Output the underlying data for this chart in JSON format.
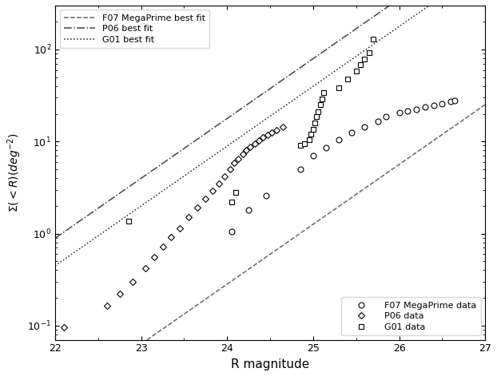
{
  "title": "",
  "xlabel": "R magnitude",
  "ylabel": "$\\Sigma(<R)(deg^{-2})$",
  "xlim": [
    22,
    27
  ],
  "ylim": [
    0.07,
    300
  ],
  "f07_circles": [
    [
      24.05,
      1.05
    ],
    [
      24.25,
      1.8
    ],
    [
      24.45,
      2.6
    ],
    [
      24.85,
      5.0
    ],
    [
      25.0,
      7.0
    ],
    [
      25.15,
      8.5
    ],
    [
      25.3,
      10.5
    ],
    [
      25.45,
      12.5
    ],
    [
      25.6,
      14.5
    ],
    [
      25.75,
      16.5
    ],
    [
      25.85,
      18.5
    ],
    [
      26.0,
      20.5
    ],
    [
      26.1,
      21.5
    ],
    [
      26.2,
      22.5
    ],
    [
      26.3,
      23.5
    ],
    [
      26.4,
      24.5
    ],
    [
      26.5,
      25.5
    ],
    [
      26.6,
      27.0
    ],
    [
      26.65,
      28.0
    ]
  ],
  "p06_diamonds": [
    [
      22.1,
      0.095
    ],
    [
      22.6,
      0.165
    ],
    [
      22.75,
      0.22
    ],
    [
      22.9,
      0.3
    ],
    [
      23.05,
      0.42
    ],
    [
      23.15,
      0.55
    ],
    [
      23.25,
      0.72
    ],
    [
      23.35,
      0.92
    ],
    [
      23.45,
      1.15
    ],
    [
      23.55,
      1.5
    ],
    [
      23.65,
      1.9
    ],
    [
      23.75,
      2.4
    ],
    [
      23.83,
      2.9
    ],
    [
      23.9,
      3.5
    ],
    [
      23.97,
      4.2
    ],
    [
      24.03,
      5.0
    ],
    [
      24.08,
      5.8
    ],
    [
      24.13,
      6.5
    ],
    [
      24.18,
      7.3
    ],
    [
      24.22,
      8.0
    ],
    [
      24.27,
      8.8
    ],
    [
      24.32,
      9.5
    ],
    [
      24.37,
      10.3
    ],
    [
      24.42,
      11.0
    ],
    [
      24.47,
      11.8
    ],
    [
      24.52,
      12.5
    ],
    [
      24.57,
      13.3
    ],
    [
      24.65,
      14.5
    ]
  ],
  "g01_squares": [
    [
      22.85,
      1.35
    ],
    [
      24.05,
      2.2
    ],
    [
      24.1,
      2.8
    ],
    [
      24.85,
      9.0
    ],
    [
      24.9,
      9.5
    ],
    [
      24.95,
      10.5
    ],
    [
      24.97,
      12.0
    ],
    [
      25.0,
      13.5
    ],
    [
      25.02,
      16.0
    ],
    [
      25.04,
      18.5
    ],
    [
      25.06,
      21.0
    ],
    [
      25.08,
      25.0
    ],
    [
      25.1,
      29.0
    ],
    [
      25.12,
      34.0
    ],
    [
      25.3,
      38.0
    ],
    [
      25.4,
      48.0
    ],
    [
      25.5,
      58.0
    ],
    [
      25.55,
      68.0
    ],
    [
      25.6,
      78.0
    ],
    [
      25.65,
      92.0
    ],
    [
      25.7,
      130.0
    ]
  ],
  "f07_a": 0.65,
  "f07_b": -16.15,
  "p06_a": 0.65,
  "p06_b": -14.35,
  "g01_a": 0.65,
  "g01_b": -14.65,
  "marker_size": 5,
  "line_width": 1.1,
  "background_color": "#ffffff"
}
